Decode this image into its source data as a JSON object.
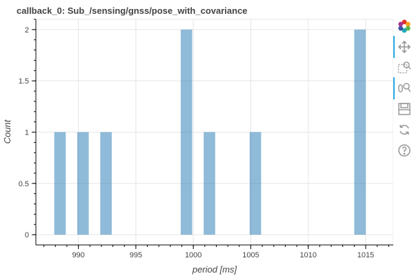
{
  "chart_data": {
    "type": "bar",
    "title": "callback_0: Sub_/sensing/gnss/pose_with_covariance",
    "xlabel": "period [ms]",
    "ylabel": "Count",
    "xlim": [
      986.3,
      1017.4
    ],
    "ylim": [
      -0.1,
      2.1
    ],
    "x_ticks": [
      990,
      995,
      1000,
      1005,
      1010,
      1015
    ],
    "y_ticks": [
      0,
      0.5,
      1,
      1.5,
      2
    ],
    "x_tick_labels": [
      "990",
      "995",
      "1000",
      "1005",
      "1010",
      "1015"
    ],
    "y_tick_labels": [
      "0",
      "0.5",
      "1",
      "1.5",
      "2"
    ],
    "bins": [
      {
        "left": 987.9,
        "right": 988.9,
        "count": 1
      },
      {
        "left": 989.9,
        "right": 990.9,
        "count": 1
      },
      {
        "left": 991.9,
        "right": 992.9,
        "count": 1
      },
      {
        "left": 998.9,
        "right": 999.9,
        "count": 2
      },
      {
        "left": 1000.9,
        "right": 1001.9,
        "count": 1
      },
      {
        "left": 1004.9,
        "right": 1005.9,
        "count": 1
      },
      {
        "left": 1014.0,
        "right": 1015.0,
        "count": 2
      }
    ],
    "bar_color": "#1f77b4",
    "bar_alpha": 0.5,
    "grid": true,
    "legend": "none"
  },
  "toolbar": {
    "tools": [
      {
        "name": "bokeh-logo-icon",
        "active": false
      },
      {
        "name": "pan-tool-icon",
        "active": true
      },
      {
        "name": "box-zoom-tool-icon",
        "active": false
      },
      {
        "name": "wheel-zoom-tool-icon",
        "active": true
      },
      {
        "name": "save-tool-icon",
        "active": false
      },
      {
        "name": "reset-tool-icon",
        "active": false
      },
      {
        "name": "help-tool-icon",
        "active": false
      }
    ]
  }
}
